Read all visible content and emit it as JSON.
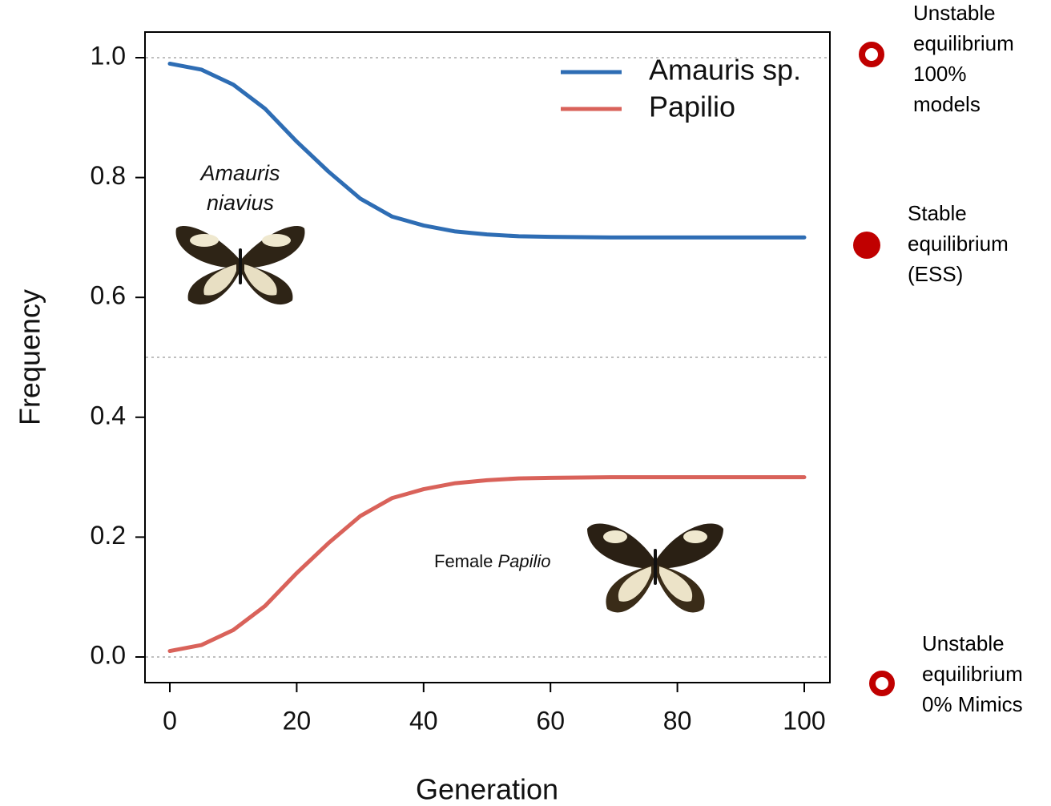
{
  "chart_data": {
    "type": "line",
    "xlabel": "Generation",
    "ylabel": "Frequency",
    "x": [
      0,
      5,
      10,
      15,
      20,
      25,
      30,
      35,
      40,
      45,
      50,
      55,
      60,
      70,
      80,
      90,
      100
    ],
    "series": [
      {
        "name": "Amauris sp.",
        "color": "#2e6db4",
        "values": [
          0.99,
          0.98,
          0.955,
          0.915,
          0.86,
          0.81,
          0.765,
          0.735,
          0.72,
          0.71,
          0.705,
          0.702,
          0.701,
          0.7,
          0.7,
          0.7,
          0.7
        ]
      },
      {
        "name": "Papilio",
        "color": "#d9625a",
        "values": [
          0.01,
          0.02,
          0.045,
          0.085,
          0.14,
          0.19,
          0.235,
          0.265,
          0.28,
          0.29,
          0.295,
          0.298,
          0.299,
          0.3,
          0.3,
          0.3,
          0.3
        ]
      }
    ],
    "xlim": [
      0,
      100
    ],
    "xticks": [
      0,
      20,
      40,
      60,
      80,
      100
    ],
    "ylim": [
      0,
      1
    ],
    "yticks": [
      {
        "value": 0,
        "label": "0.0"
      },
      0.2,
      0.4,
      0.6,
      0.8,
      {
        "value": 1,
        "label": "1.0"
      }
    ],
    "reference_lines": [
      0,
      0.5,
      1
    ],
    "legend": "upper right",
    "species_label": [
      "Amauris",
      "niavius"
    ],
    "female_label": {
      "prefix": "Female",
      "species": "Papilio"
    },
    "equilibria": [
      {
        "lines": [
          "Unstable",
          "equilibrium",
          "100%",
          "models"
        ]
      },
      {
        "lines": [
          "Stable",
          "equilibrium",
          "(ESS)"
        ]
      },
      {
        "lines": [
          "Unstable",
          "equilibrium",
          "0% Mimics"
        ]
      }
    ]
  }
}
